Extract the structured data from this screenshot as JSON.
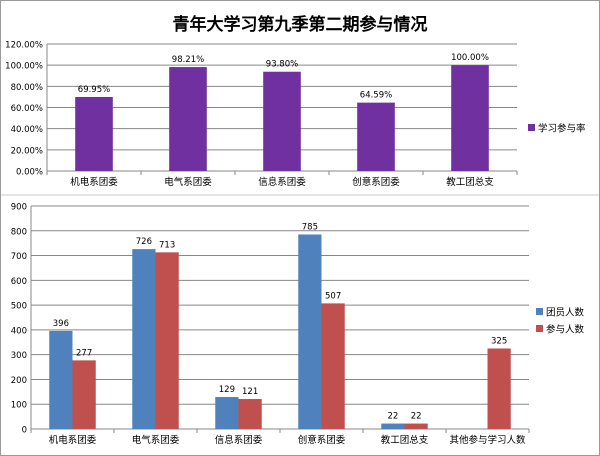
{
  "chart_data": [
    {
      "type": "bar",
      "title": "青年大学习第九季第二期参与情况",
      "categories": [
        "机电系团委",
        "电气系团委",
        "信息系团委",
        "创意系团委",
        "教工团总支"
      ],
      "series": [
        {
          "name": "学习参与率",
          "values": [
            69.95,
            98.21,
            93.8,
            64.59,
            100.0
          ],
          "labels": [
            "69.95%",
            "98.21%",
            "93.80%",
            "64.59%",
            "100.00%"
          ],
          "color": "#7030A0"
        }
      ],
      "ylim": [
        0,
        120
      ],
      "yticks": [
        "0.00%",
        "20.00%",
        "40.00%",
        "60.00%",
        "80.00%",
        "100.00%",
        "120.00%"
      ],
      "legend": "right",
      "grid": true
    },
    {
      "type": "bar",
      "categories": [
        "机电系团委",
        "电气系团委",
        "信息系团委",
        "创意系团委",
        "教工团总支",
        "其他参与学习人数"
      ],
      "series": [
        {
          "name": "团员人数",
          "values": [
            396,
            726,
            129,
            785,
            22,
            null
          ],
          "color": "#4F81BD"
        },
        {
          "name": "参与人数",
          "values": [
            277,
            713,
            121,
            507,
            22,
            325
          ],
          "color": "#C0504D"
        }
      ],
      "ylim": [
        0,
        900
      ],
      "yticks": [
        "0",
        "100",
        "200",
        "300",
        "400",
        "500",
        "600",
        "700",
        "800",
        "900"
      ],
      "legend": "right",
      "grid": true
    }
  ]
}
